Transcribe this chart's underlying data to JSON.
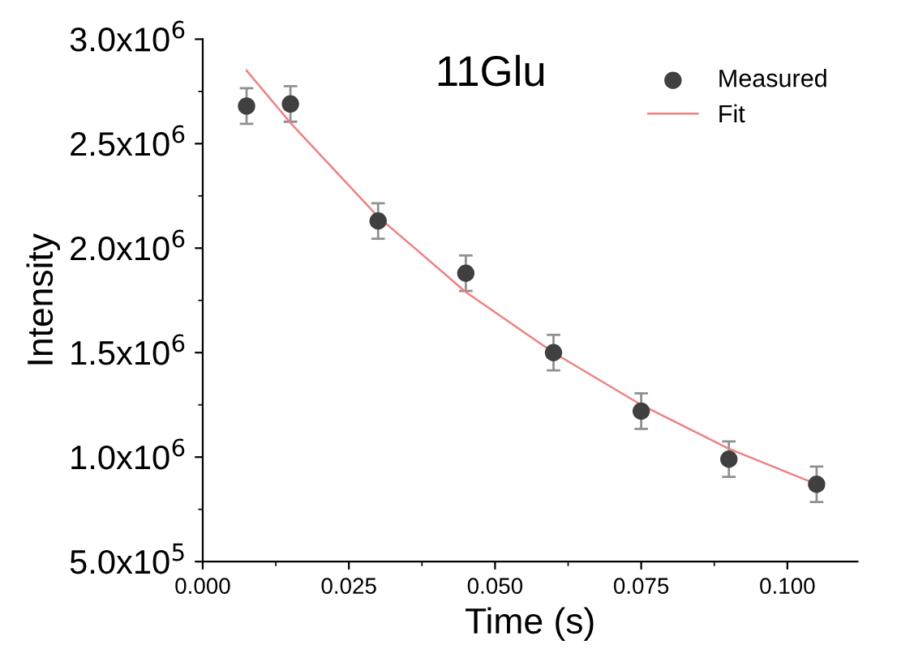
{
  "chart_data": {
    "type": "scatter",
    "title": "11Glu",
    "xlabel": "Time (s)",
    "ylabel": "Intensity",
    "x": [
      0.0075,
      0.015,
      0.03,
      0.045,
      0.06,
      0.075,
      0.09,
      0.105
    ],
    "series": [
      {
        "name": "Measured",
        "color": "#404040",
        "marker": "circle",
        "values": [
          2680000,
          2690000,
          2130000,
          1880000,
          1500000,
          1220000,
          990000,
          870000
        ],
        "errors": [
          85000,
          85000,
          85000,
          85000,
          85000,
          85000,
          85000,
          85000
        ]
      },
      {
        "name": "Fit",
        "type": "line",
        "color": "#f08080",
        "marker": "none",
        "x": [
          0.0075,
          0.015,
          0.03,
          0.045,
          0.06,
          0.075,
          0.09,
          0.105
        ],
        "values": [
          2850000,
          2600000,
          2150000,
          1790000,
          1500000,
          1250000,
          1040000,
          870000
        ]
      }
    ],
    "xlim": [
      0,
      0.112
    ],
    "ylim": [
      500000,
      3000000
    ],
    "xticks": [
      {
        "value": 0,
        "label": "0.000"
      },
      0.025,
      {
        "value": 0.05,
        "label": "0.050"
      },
      0.075,
      {
        "value": 0.1,
        "label": "0.100"
      }
    ],
    "yticks": [
      {
        "value": 500000,
        "label": "5.0x10$^{5}$"
      },
      {
        "value": 1000000,
        "label": "1.0x10$^{6}$"
      },
      {
        "value": 1500000,
        "label": "1.5x10$^{6}$"
      },
      {
        "value": 2000000,
        "label": "2.0x10$^{6}$"
      },
      {
        "value": 2500000,
        "label": "2.5x10$^{6}$"
      },
      {
        "value": 3000000,
        "label": "3.0x10$^{6}$"
      }
    ],
    "legend": "top right",
    "grid": false
  }
}
